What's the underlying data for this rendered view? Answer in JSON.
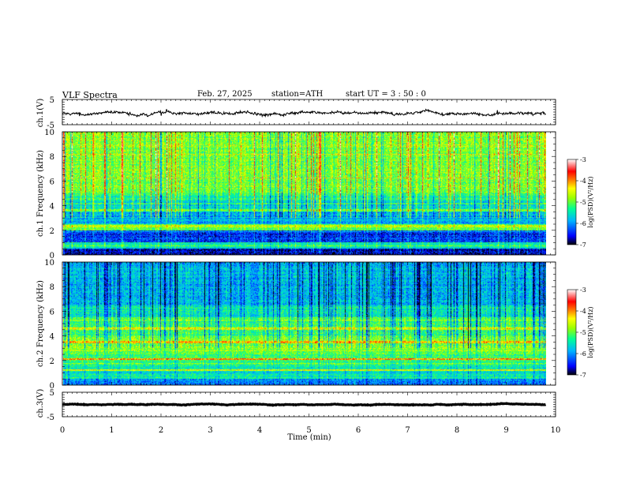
{
  "header": {
    "title": "VLF  Spectra",
    "date": "Feb. 27, 2025",
    "station": "station=ATH",
    "start_ut": "start  UT  =   3  : 50 : 0"
  },
  "colorbar": {
    "label": "log(PSD)(V²/Hz)",
    "ticks": [
      "-3",
      "-4",
      "-5",
      "-6",
      "-7"
    ]
  },
  "colors": {
    "spectrum_scale": [
      "#000000",
      "#0000ff",
      "#00b4ff",
      "#00ff96",
      "#9bff00",
      "#ffff00",
      "#ff7a00",
      "#ff0000",
      "#ffffff"
    ]
  },
  "chart_data": [
    {
      "type": "line",
      "id": "ch1-waveform",
      "ylabel": "ch.1(V)",
      "y_ticks": [
        "5",
        "-5"
      ],
      "ylim": [
        -5,
        5
      ],
      "xlim": [
        0,
        10
      ],
      "x_end": 9.8,
      "mean_value": -0.3,
      "amplitude": 0.8
    },
    {
      "type": "heatmap",
      "id": "ch1-spectrogram",
      "ylabel": "ch.1  Frequency  (kHz)",
      "y_ticks": [
        "0",
        "2",
        "4",
        "6",
        "8",
        "10"
      ],
      "ylim": [
        0,
        10
      ],
      "xlim": [
        0,
        10
      ],
      "x_end": 9.8,
      "z_range": [
        -7,
        -3
      ],
      "bands": [
        {
          "f0": 10.0,
          "f1": 5.0,
          "level": -4.9
        },
        {
          "f0": 5.0,
          "f1": 4.5,
          "level": -5.3
        },
        {
          "f0": 4.5,
          "f1": 3.5,
          "level": -5.6
        },
        {
          "f0": 3.5,
          "f1": 2.5,
          "level": -5.9
        },
        {
          "f0": 2.5,
          "f1": 2.0,
          "level": -5.0
        },
        {
          "f0": 2.0,
          "f1": 1.0,
          "level": -6.4
        },
        {
          "f0": 1.0,
          "f1": 0.5,
          "level": -5.5
        },
        {
          "f0": 0.5,
          "f1": 0.0,
          "level": -6.7
        }
      ],
      "lines": [
        {
          "f": 2.3,
          "level": -4.6
        },
        {
          "f": 3.6,
          "level": -5.0
        }
      ]
    },
    {
      "type": "heatmap",
      "id": "ch2-spectrogram",
      "ylabel": "ch.2  Frequency  (kHz)",
      "y_ticks": [
        "0",
        "2",
        "4",
        "6",
        "8",
        "10"
      ],
      "ylim": [
        0,
        10
      ],
      "xlim": [
        0,
        10
      ],
      "x_end": 9.8,
      "z_range": [
        -7,
        -3
      ],
      "bands": [
        {
          "f0": 10.0,
          "f1": 6.5,
          "level": -5.8
        },
        {
          "f0": 6.5,
          "f1": 5.5,
          "level": -5.5
        },
        {
          "f0": 5.5,
          "f1": 4.0,
          "level": -5.2
        },
        {
          "f0": 4.0,
          "f1": 2.5,
          "level": -4.9
        },
        {
          "f0": 2.5,
          "f1": 1.5,
          "level": -5.2
        },
        {
          "f0": 1.5,
          "f1": 0.5,
          "level": -5.5
        },
        {
          "f0": 0.5,
          "f1": 0.0,
          "level": -6.0
        }
      ],
      "lines": [
        {
          "f": 2.1,
          "level": -3.9
        },
        {
          "f": 3.5,
          "level": -4.1
        },
        {
          "f": 4.6,
          "level": -4.4
        },
        {
          "f": 1.2,
          "level": -4.5
        }
      ]
    },
    {
      "type": "line",
      "id": "ch3-waveform",
      "ylabel": "ch.3(V)",
      "y_ticks": [
        "5",
        "-5"
      ],
      "ylim": [
        -5,
        5
      ],
      "xlim": [
        0,
        10
      ],
      "x_end": 9.8,
      "mean_value": 0,
      "amplitude": 0.2
    }
  ],
  "x_axis": {
    "label": "Time  (min)",
    "ticks": [
      "0",
      "1",
      "2",
      "3",
      "4",
      "5",
      "6",
      "7",
      "8",
      "9",
      "10"
    ]
  }
}
